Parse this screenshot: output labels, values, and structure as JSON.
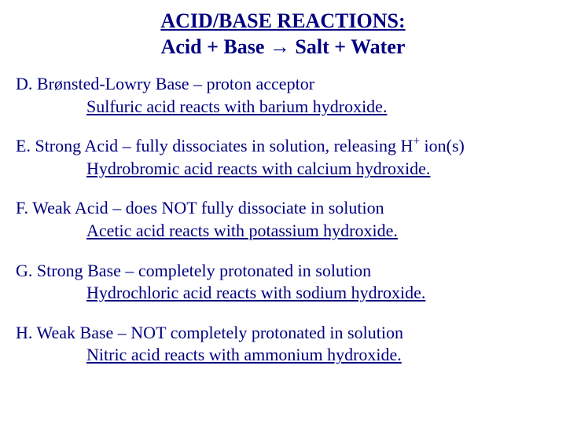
{
  "title": {
    "line1": "ACID/BASE REACTIONS:",
    "line2_left": "Acid  +  Base ",
    "line2_arrow": "→",
    "line2_right": "  Salt  +  Water"
  },
  "items": [
    {
      "label": "D.",
      "term": "Brønsted-Lowry Base",
      "definition": " – proton acceptor",
      "example": "Sulfuric acid reacts with barium hydroxide."
    },
    {
      "label": "E.",
      "term": "Strong Acid",
      "definition_pre": " – fully dissociates in solution, releasing H",
      "definition_sup": "+",
      "definition_post": " ion(s)",
      "example": "Hydrobromic acid reacts with calcium hydroxide."
    },
    {
      "label": "F.",
      "term": "Weak Acid",
      "definition": " – does NOT fully dissociate in solution",
      "example": "Acetic acid reacts with potassium hydroxide."
    },
    {
      "label": "G.",
      "term": "Strong Base",
      "definition": " – completely protonated in solution",
      "example": "Hydrochloric acid reacts with sodium hydroxide."
    },
    {
      "label": "H.",
      "term": "Weak Base",
      "definition": " – NOT completely protonated in solution",
      "example": "Nitric acid reacts with ammonium hydroxide."
    }
  ],
  "colors": {
    "text": "#000080",
    "background": "#ffffff"
  },
  "typography": {
    "font_family": "Times New Roman",
    "title_fontsize": 26,
    "body_fontsize": 22,
    "title_weight": "bold"
  }
}
